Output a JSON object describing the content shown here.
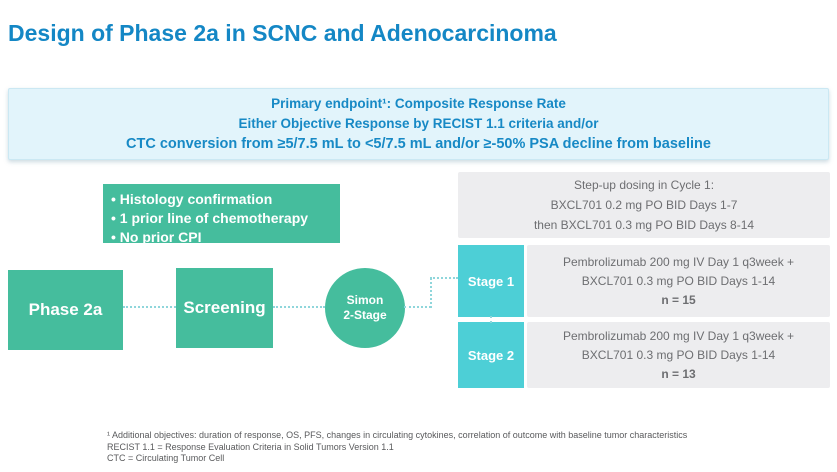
{
  "title": "Design of Phase 2a in SCNC and Adenocarcinoma",
  "colors": {
    "title_blue": "#1487C5",
    "endpoint_bg": "#E2F4FB",
    "endpoint_text": "#1789C5",
    "green": "#45BD9D",
    "stage_teal": "#4DCFD6",
    "gray_box_bg": "#EDEDEF",
    "gray_text": "#6D6E71",
    "connector": "#8FD6DB"
  },
  "endpoint_box": {
    "line1": "Primary endpoint¹: Composite Response Rate",
    "line2": "Either Objective Response by RECIST 1.1 criteria and/or",
    "line3": "CTC conversion from ≥5/7.5 mL to <5/7.5 mL and/or ≥-50% PSA decline from baseline"
  },
  "eligibility": {
    "items": [
      "• Histology confirmation",
      "• 1 prior line of chemotherapy",
      "• No prior CPI"
    ]
  },
  "flow": {
    "phase_label": "Phase 2a",
    "screening_label": "Screening",
    "simon_line1": "Simon",
    "simon_line2": "2-Stage"
  },
  "stepup_box": {
    "line1": "Step-up dosing in Cycle 1:",
    "line2": "BXCL701 0.2 mg PO BID Days 1-7",
    "line3": "then BXCL701 0.3 mg PO BID Days 8-14"
  },
  "stages": [
    {
      "label": "Stage 1",
      "line1": "Pembrolizumab 200 mg IV Day 1 q3week +",
      "line2": "BXCL701 0.3 mg PO BID Days 1-14",
      "n": "n = 15"
    },
    {
      "label": "Stage 2",
      "line1": "Pembrolizumab 200 mg IV Day 1 q3week +",
      "line2": "BXCL701 0.3 mg PO BID Days 1-14",
      "n": "n = 13"
    }
  ],
  "footnotes": [
    "¹ Additional objectives: duration of response, OS, PFS, changes in circulating cytokines, correlation of outcome with baseline tumor characteristics",
    "RECIST 1.1 = Response Evaluation Criteria in Solid Tumors Version 1.1",
    "CTC = Circulating Tumor Cell"
  ]
}
